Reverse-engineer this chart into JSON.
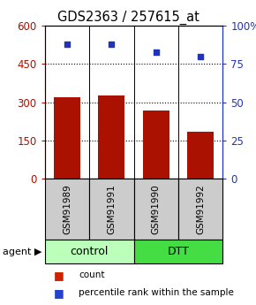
{
  "title": "GDS2363 / 257615_at",
  "samples": [
    "GSM91989",
    "GSM91991",
    "GSM91990",
    "GSM91992"
  ],
  "counts": [
    320,
    327,
    268,
    183
  ],
  "percentiles": [
    88,
    88,
    83,
    80
  ],
  "left_ylim": [
    0,
    600
  ],
  "left_yticks": [
    0,
    150,
    300,
    450,
    600
  ],
  "right_ylim": [
    0,
    100
  ],
  "right_yticks": [
    0,
    25,
    50,
    75,
    100
  ],
  "bar_color": "#aa1100",
  "dot_color": "#2233bb",
  "groups": [
    {
      "label": "control",
      "indices": [
        0,
        1
      ],
      "color": "#bbffbb"
    },
    {
      "label": "DTT",
      "indices": [
        2,
        3
      ],
      "color": "#44dd44"
    }
  ],
  "sample_bg_color": "#cccccc",
  "legend_count_color": "#cc2200",
  "legend_pct_color": "#2244cc",
  "title_fontsize": 10.5,
  "tick_fontsize": 8.5,
  "sample_label_fontsize": 7.5,
  "group_label_fontsize": 9
}
